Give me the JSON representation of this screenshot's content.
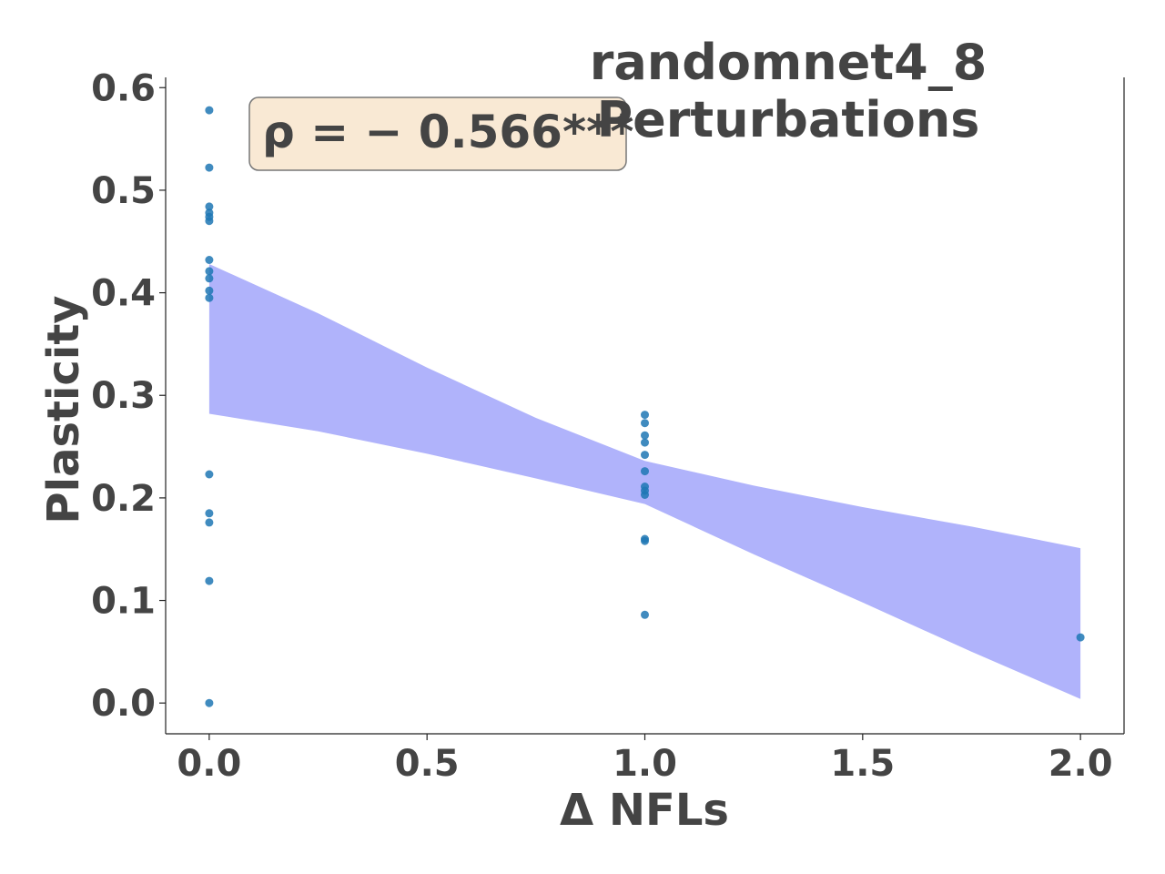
{
  "chart_data": {
    "type": "scatter",
    "title_lines": [
      "randomnet4_8",
      "Perturbations"
    ],
    "xlabel": "Δ NFLs",
    "ylabel": "Plasticity",
    "annotation": "ρ = − 0.566***",
    "xlim": [
      -0.1,
      2.1
    ],
    "ylim": [
      -0.03,
      0.61
    ],
    "x_ticks": [
      0.0,
      0.5,
      1.0,
      1.5,
      2.0
    ],
    "x_tick_labels": [
      "0.0",
      "0.5",
      "1.0",
      "1.5",
      "2.0"
    ],
    "y_ticks": [
      0.0,
      0.1,
      0.2,
      0.3,
      0.4,
      0.5,
      0.6
    ],
    "y_tick_labels": [
      "0.0",
      "0.1",
      "0.2",
      "0.3",
      "0.4",
      "0.5",
      "0.6"
    ],
    "grid": false,
    "points": [
      {
        "x": 0,
        "y": 0.578
      },
      {
        "x": 0,
        "y": 0.522
      },
      {
        "x": 0,
        "y": 0.484
      },
      {
        "x": 0,
        "y": 0.478
      },
      {
        "x": 0,
        "y": 0.474
      },
      {
        "x": 0,
        "y": 0.47
      },
      {
        "x": 0,
        "y": 0.432
      },
      {
        "x": 0,
        "y": 0.421
      },
      {
        "x": 0,
        "y": 0.414
      },
      {
        "x": 0,
        "y": 0.402
      },
      {
        "x": 0,
        "y": 0.395
      },
      {
        "x": 0,
        "y": 0.223
      },
      {
        "x": 0,
        "y": 0.185
      },
      {
        "x": 0,
        "y": 0.176
      },
      {
        "x": 0,
        "y": 0.119
      },
      {
        "x": 0,
        "y": 0.0
      },
      {
        "x": 1,
        "y": 0.281
      },
      {
        "x": 1,
        "y": 0.273
      },
      {
        "x": 1,
        "y": 0.261
      },
      {
        "x": 1,
        "y": 0.254
      },
      {
        "x": 1,
        "y": 0.242
      },
      {
        "x": 1,
        "y": 0.226
      },
      {
        "x": 1,
        "y": 0.211
      },
      {
        "x": 1,
        "y": 0.207
      },
      {
        "x": 1,
        "y": 0.203
      },
      {
        "x": 1,
        "y": 0.16
      },
      {
        "x": 1,
        "y": 0.158
      },
      {
        "x": 1,
        "y": 0.086
      },
      {
        "x": 2,
        "y": 0.064
      }
    ],
    "confidence_band": {
      "x": [
        0.0,
        0.25,
        0.5,
        0.75,
        1.0,
        1.25,
        1.5,
        1.75,
        2.0
      ],
      "upper": [
        0.428,
        0.38,
        0.327,
        0.278,
        0.236,
        0.212,
        0.191,
        0.172,
        0.151
      ],
      "lower": [
        0.282,
        0.265,
        0.243,
        0.219,
        0.194,
        0.145,
        0.098,
        0.05,
        0.004
      ]
    },
    "colors": {
      "points": "#1f77b4",
      "band": "#b0b3fb",
      "annotation_bg": "#f9e9d4",
      "annotation_border": "#777777",
      "text": "#444444",
      "axes": "#222222"
    }
  }
}
